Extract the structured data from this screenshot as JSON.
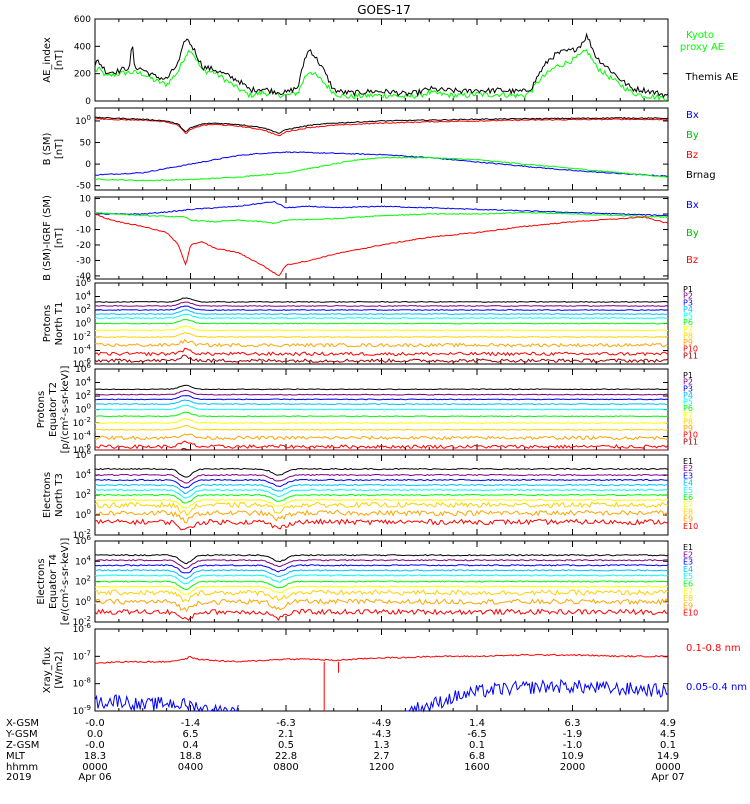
{
  "title": "GOES-17",
  "colors": {
    "black": "#000000",
    "green": "#00ff00",
    "red": "#ff0000",
    "blue": "#0000ff",
    "channels": [
      "#000000",
      "#800080",
      "#0000ff",
      "#00bfff",
      "#00ffff",
      "#00ff00",
      "#ffff00",
      "#ffd000",
      "#ffa500",
      "#ff0000",
      "#a00000"
    ]
  },
  "chart_data": [
    {
      "type": "line",
      "id": "ae",
      "ylabel": "AE_index\n[nT]",
      "ylim": [
        0,
        600
      ],
      "yticks": [
        "0",
        "200",
        "400",
        "600"
      ],
      "series": [
        {
          "name": "Kyoto proxy AE",
          "color": "#00ff00",
          "x": [
            0,
            0.1,
            0.5,
            1,
            1.5,
            2,
            2.5,
            3,
            3.5,
            3.8,
            4,
            4.2,
            4.5,
            5,
            5.5,
            6,
            6.5,
            7,
            7.5,
            8,
            8.5,
            8.8,
            9,
            9.5,
            10,
            10.5,
            11,
            11.5,
            12,
            12.5,
            13,
            13.5,
            14,
            14.5,
            15,
            15.5,
            16,
            16.5,
            17,
            17.5,
            18,
            18.3,
            18.6,
            19,
            19.3,
            19.6,
            20,
            20.3,
            20.6,
            21,
            21.5,
            22,
            22.5,
            23,
            23.5,
            24
          ],
          "y": [
            200,
            240,
            180,
            200,
            210,
            200,
            150,
            120,
            220,
            340,
            380,
            320,
            220,
            210,
            150,
            90,
            40,
            60,
            50,
            40,
            60,
            180,
            220,
            150,
            60,
            30,
            35,
            40,
            40,
            40,
            30,
            40,
            60,
            50,
            40,
            40,
            50,
            45,
            50,
            40,
            40,
            80,
            150,
            210,
            250,
            270,
            300,
            330,
            370,
            250,
            180,
            120,
            60,
            40,
            30,
            20
          ]
        },
        {
          "name": "Themis AE",
          "color": "#000000",
          "x": [
            0,
            0.1,
            0.5,
            1,
            1.3,
            1.5,
            1.55,
            1.6,
            1.7,
            2,
            2.5,
            3,
            3.5,
            3.8,
            4,
            4.2,
            4.5,
            5,
            5.5,
            6,
            6.5,
            7,
            7.5,
            8,
            8.5,
            8.8,
            9,
            9.5,
            10,
            10.5,
            11,
            11.5,
            12,
            12.5,
            13,
            13.5,
            14,
            14.5,
            15,
            15.5,
            16,
            16.5,
            17,
            17.5,
            18,
            18.3,
            18.6,
            19,
            19.3,
            19.6,
            20,
            20.3,
            20.6,
            21,
            21.5,
            22,
            22.5,
            23,
            23.5,
            24
          ],
          "y": [
            250,
            300,
            210,
            220,
            240,
            250,
            600,
            260,
            250,
            230,
            180,
            160,
            280,
            460,
            420,
            360,
            250,
            230,
            190,
            150,
            80,
            90,
            70,
            60,
            100,
            320,
            380,
            250,
            80,
            60,
            60,
            70,
            70,
            65,
            50,
            60,
            90,
            80,
            75,
            70,
            80,
            75,
            80,
            70,
            70,
            100,
            200,
            300,
            340,
            360,
            370,
            400,
            480,
            320,
            240,
            160,
            90,
            80,
            60,
            40
          ]
        }
      ]
    },
    {
      "type": "line",
      "id": "bsm",
      "ylabel": "B (SM)\n[nT]",
      "ylim": [
        -60,
        130
      ],
      "yticks": [
        "-50",
        "0",
        "50",
        "100"
      ],
      "series": [
        {
          "name": "Bx",
          "color": "#0000ff",
          "x": [
            0,
            2,
            4,
            6,
            7,
            8,
            10,
            12,
            14,
            16,
            18,
            20,
            22,
            24
          ],
          "y": [
            -25,
            -20,
            0,
            20,
            25,
            28,
            25,
            22,
            15,
            5,
            -5,
            -15,
            -22,
            -28
          ]
        },
        {
          "name": "By",
          "color": "#00ff00",
          "x": [
            0,
            2,
            4,
            6,
            8,
            10,
            11,
            12,
            14,
            16,
            18,
            20,
            22,
            24
          ],
          "y": [
            -35,
            -38,
            -36,
            -30,
            -20,
            0,
            10,
            15,
            15,
            10,
            0,
            -10,
            -20,
            -30
          ]
        },
        {
          "name": "Bz",
          "color": "#ff0000",
          "x": [
            0,
            1,
            2,
            3,
            3.5,
            3.8,
            4,
            4.5,
            5,
            6,
            7,
            7.5,
            7.7,
            8,
            9,
            10,
            12,
            14,
            16,
            18,
            20,
            22,
            24
          ],
          "y": [
            105,
            103,
            102,
            98,
            90,
            70,
            80,
            90,
            92,
            88,
            80,
            70,
            65,
            75,
            85,
            90,
            95,
            98,
            100,
            102,
            103,
            104,
            103
          ]
        },
        {
          "name": "Brnag",
          "color": "#000000",
          "x": [
            0,
            1,
            2,
            3,
            3.5,
            3.8,
            4,
            4.5,
            5,
            6,
            7,
            7.5,
            7.7,
            8,
            9,
            10,
            12,
            14,
            16,
            18,
            20,
            22,
            24
          ],
          "y": [
            108,
            106,
            104,
            100,
            92,
            74,
            84,
            93,
            95,
            92,
            85,
            76,
            71,
            80,
            90,
            95,
            100,
            102,
            104,
            105,
            106,
            107,
            106
          ]
        }
      ]
    },
    {
      "type": "line",
      "id": "bigrf",
      "ylabel": "B (SM)-IGRF (SM)\n[nT]",
      "ylim": [
        -42,
        11
      ],
      "yticks": [
        "-40",
        "-30",
        "-20",
        "-10",
        "0",
        "10"
      ],
      "series": [
        {
          "name": "Bx",
          "color": "#0000ff",
          "x": [
            0,
            2,
            3.5,
            4,
            5,
            6,
            7,
            7.5,
            8,
            9,
            10,
            12,
            14,
            16,
            18,
            20,
            22,
            24
          ],
          "y": [
            0,
            0,
            2,
            3,
            4,
            5,
            7,
            8,
            4,
            5,
            4,
            5,
            4,
            3,
            2,
            1,
            0,
            -1
          ]
        },
        {
          "name": "By",
          "color": "#00ff00",
          "x": [
            0,
            2,
            3.8,
            4,
            5,
            6,
            7,
            7.5,
            8,
            10,
            12,
            14,
            16,
            18,
            20,
            22,
            24
          ],
          "y": [
            1,
            -1,
            -2,
            -4,
            -5,
            -4,
            -5,
            -6,
            -4,
            -3,
            -1,
            0,
            0,
            1,
            0,
            -1,
            -2
          ]
        },
        {
          "name": "Bz",
          "color": "#ff0000",
          "x": [
            0,
            0.5,
            1,
            2,
            3,
            3.5,
            3.8,
            4,
            4.5,
            5,
            6,
            7,
            7.5,
            7.7,
            8,
            9,
            10,
            11,
            12,
            14,
            16,
            18,
            20,
            22,
            23,
            24
          ],
          "y": [
            0,
            -3,
            -5,
            -8,
            -12,
            -20,
            -33,
            -20,
            -18,
            -22,
            -25,
            -33,
            -38,
            -40,
            -33,
            -30,
            -26,
            -23,
            -20,
            -15,
            -12,
            -8,
            -5,
            -3,
            -2,
            -6
          ]
        }
      ]
    },
    {
      "type": "line",
      "id": "prot1",
      "ylabel": "Protons\nNorth T1",
      "ylim": [
        -6,
        6
      ],
      "yticks": [
        "10-6",
        "10-4",
        "10-2",
        "100",
        "102",
        "104",
        "106"
      ],
      "series_labels": [
        "P1",
        "P2",
        "P3",
        "P4",
        "P5",
        "P6",
        "P7",
        "P8",
        "P9",
        "P10",
        "P11"
      ],
      "levels": [
        3.2,
        2.6,
        2.0,
        1.4,
        0.8,
        0.0,
        -1.0,
        -2.0,
        -3.2,
        -4.5,
        -5.5
      ]
    },
    {
      "type": "line",
      "id": "prot2",
      "ylabel": "Protons\nEquator T2\n[p/(cm²-s-sr-keV)]",
      "ylim": [
        -6,
        6
      ],
      "yticks": [
        "10-6",
        "10-4",
        "10-2",
        "100",
        "102",
        "104",
        "106"
      ],
      "series_labels": [
        "P1",
        "P2",
        "P3",
        "P4",
        "P5",
        "P6",
        "P7",
        "P8",
        "P9",
        "P10",
        "P11"
      ],
      "levels": [
        3.0,
        2.2,
        1.5,
        0.8,
        0.0,
        -1.0,
        -2.0,
        -3.0,
        -4.2,
        -5.5,
        -6.5
      ]
    },
    {
      "type": "line",
      "id": "elec1",
      "ylabel": "Electrons\nNorth T3",
      "ylim": [
        -2,
        6
      ],
      "yticks": [
        "10-2",
        "100",
        "102",
        "104",
        "106"
      ],
      "series_labels": [
        "E1",
        "E2",
        "E3",
        "E4",
        "E5",
        "E6",
        "E7",
        "E8",
        "E9",
        "E10"
      ],
      "levels": [
        4.6,
        4.0,
        3.5,
        3.0,
        2.5,
        2.0,
        1.5,
        1.0,
        0.2,
        -0.7
      ]
    },
    {
      "type": "line",
      "id": "elec2",
      "ylabel": "Electrons\nEquator T4\n[e/(cm²-s-sr-keV)]",
      "ylim": [
        -2,
        6
      ],
      "yticks": [
        "10-2",
        "100",
        "102",
        "104",
        "106"
      ],
      "series_labels": [
        "E1",
        "E2",
        "E3",
        "E4",
        "E5",
        "E6",
        "E7",
        "E8",
        "E9",
        "E10"
      ],
      "levels": [
        4.6,
        4.1,
        3.6,
        3.1,
        2.6,
        2.0,
        1.5,
        0.9,
        0.0,
        -1.0
      ]
    },
    {
      "type": "line",
      "id": "xray",
      "ylabel": "Xray_flux\n[W/m2]",
      "ylim": [
        -9,
        -6
      ],
      "yticks": [
        "10-9",
        "10-8",
        "10-7",
        "10-6"
      ],
      "series": [
        {
          "name": "0.1-0.8 nm",
          "color": "#ff0000",
          "x": [
            0,
            1,
            2,
            3,
            3.8,
            4,
            4.2,
            5,
            6,
            7,
            8,
            9,
            10,
            11,
            12,
            13,
            14,
            16,
            18,
            20,
            22,
            24
          ],
          "y": [
            -7.25,
            -7.2,
            -7.2,
            -7.2,
            -7.1,
            -7.0,
            -7.1,
            -7.15,
            -7.2,
            -7.15,
            -7.1,
            -7.1,
            -7.15,
            -7.1,
            -7.05,
            -7.05,
            -7.0,
            -7.0,
            -6.95,
            -6.95,
            -7.0,
            -7.0
          ]
        },
        {
          "name": "0.05-0.4 nm",
          "color": "#0000ff",
          "x": [
            0,
            1,
            2,
            3,
            4,
            5,
            6,
            13,
            14,
            15,
            16,
            17,
            18,
            19,
            20,
            21,
            22,
            23,
            24
          ],
          "y": [
            -8.7,
            -8.6,
            -8.8,
            -8.7,
            -8.8,
            -9.0,
            -9.0,
            -9.0,
            -8.8,
            -8.5,
            -8.3,
            -8.2,
            -8.15,
            -8.1,
            -8.1,
            -8.15,
            -8.2,
            -8.2,
            -8.3
          ]
        }
      ]
    }
  ],
  "ae_legend": {
    "kyoto_line1": "Kyoto",
    "kyoto_line2": "proxy AE",
    "themis": "Themis AE"
  },
  "bsm_legend": [
    "Bx",
    "By",
    "Bz",
    "Brnag"
  ],
  "bigrf_legend": [
    "Bx",
    "By",
    "Bz"
  ],
  "xray_legend": [
    "0.1-0.8 nm",
    "0.05-0.4 nm"
  ],
  "footer": {
    "row_labels": [
      "X-GSM",
      "Y-GSM",
      "Z-GSM",
      "MLT",
      "hhmm",
      "2019"
    ],
    "columns": [
      [
        "-0.0",
        "0.0",
        "-0.0",
        "18.3",
        "0000",
        "Apr 06"
      ],
      [
        "-1.4",
        "6.5",
        "0.4",
        "18.8",
        "0400",
        ""
      ],
      [
        "-6.3",
        "2.1",
        "0.5",
        "22.8",
        "0800",
        ""
      ],
      [
        "-4.9",
        "-4.3",
        "1.3",
        "2.7",
        "1200",
        ""
      ],
      [
        "1.4",
        "-6.5",
        "0.1",
        "6.8",
        "1600",
        ""
      ],
      [
        "6.3",
        "-1.9",
        "-1.0",
        "10.9",
        "2000",
        ""
      ],
      [
        "4.9",
        "4.5",
        "0.1",
        "14.9",
        "0000",
        "Apr 07"
      ]
    ]
  }
}
